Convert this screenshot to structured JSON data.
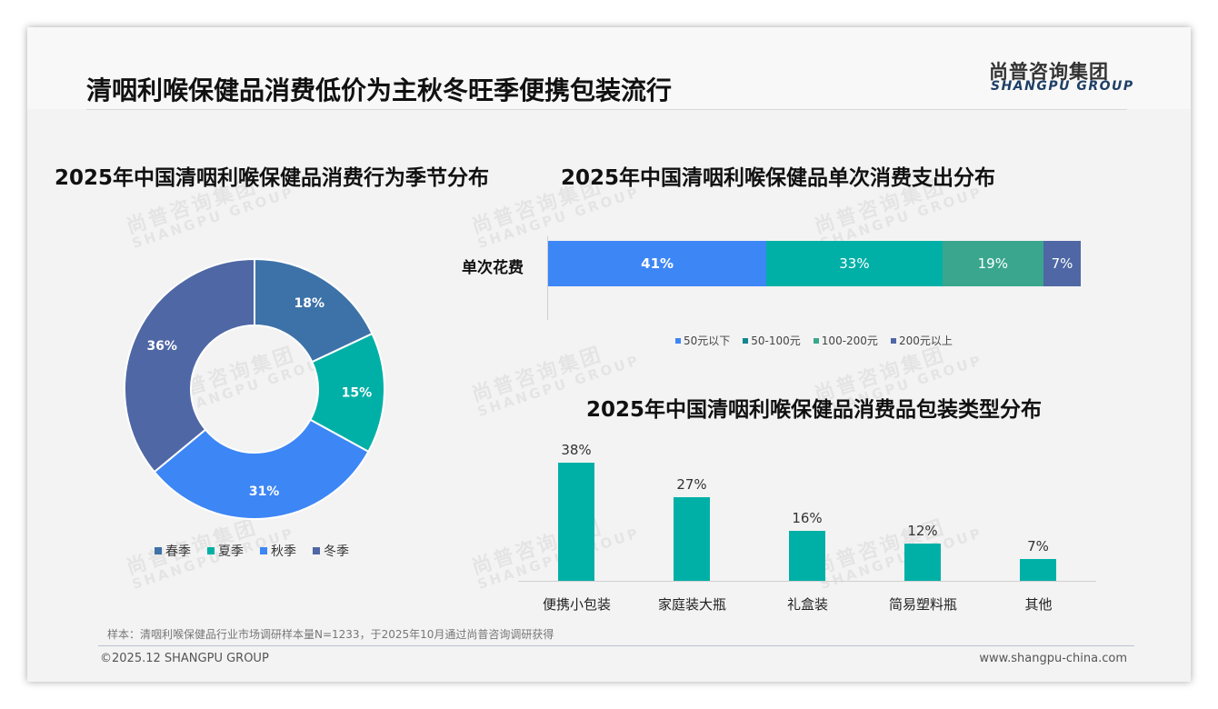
{
  "header": {
    "title": "清咽利喉保健品消费低价为主秋冬旺季便携包装流行",
    "logo_cn": "尚普咨询集团",
    "logo_en": "SHANGPU GROUP"
  },
  "watermark": {
    "cn": "尚普咨询集团",
    "en": "SHANGPU GROUP"
  },
  "colors": {
    "spring": "#3d72a8",
    "summer": "#00b0a6",
    "autumn": "#3d86f5",
    "winter": "#4f67a5",
    "below50": "#3d86f5",
    "r50_100": "#00b0a6",
    "r100_200": "#3aa68e",
    "above200": "#4f67a5",
    "bar": "#00b0a6"
  },
  "chart_data": [
    {
      "type": "pie",
      "variant": "donut",
      "title": "2025年中国清咽利喉保健品消费行为季节分布",
      "categories": [
        "春季",
        "夏季",
        "秋季",
        "冬季"
      ],
      "values": [
        18,
        15,
        31,
        36
      ],
      "labels": [
        "18%",
        "15%",
        "31%",
        "36%"
      ],
      "legend_position": "bottom"
    },
    {
      "type": "bar",
      "orientation": "horizontal",
      "stacked": true,
      "title": "2025年中国清咽利喉保健品单次消费支出分布",
      "categories": [
        "单次花费"
      ],
      "series": [
        {
          "name": "50元以下",
          "values": [
            41
          ],
          "label": "41%"
        },
        {
          "name": "50-100元",
          "values": [
            33
          ],
          "label": "33%"
        },
        {
          "name": "100-200元",
          "values": [
            19
          ],
          "label": "19%"
        },
        {
          "name": "200元以上",
          "values": [
            7
          ],
          "label": "7%"
        }
      ],
      "legend_position": "bottom"
    },
    {
      "type": "bar",
      "title": "2025年中国清咽利喉保健品消费品包装类型分布",
      "categories": [
        "便携小包装",
        "家庭装大瓶",
        "礼盒装",
        "简易塑料瓶",
        "其他"
      ],
      "values": [
        38,
        27,
        16,
        12,
        7
      ],
      "labels": [
        "38%",
        "27%",
        "16%",
        "12%",
        "7%"
      ],
      "ylim": [
        0,
        40
      ]
    }
  ],
  "footer": {
    "note": "样本：清咽利喉保健品行业市场调研样本量N=1233，于2025年10月通过尚普咨询调研获得",
    "copyright": "©2025.12 SHANGPU GROUP",
    "website": "www.shangpu-china.com"
  }
}
